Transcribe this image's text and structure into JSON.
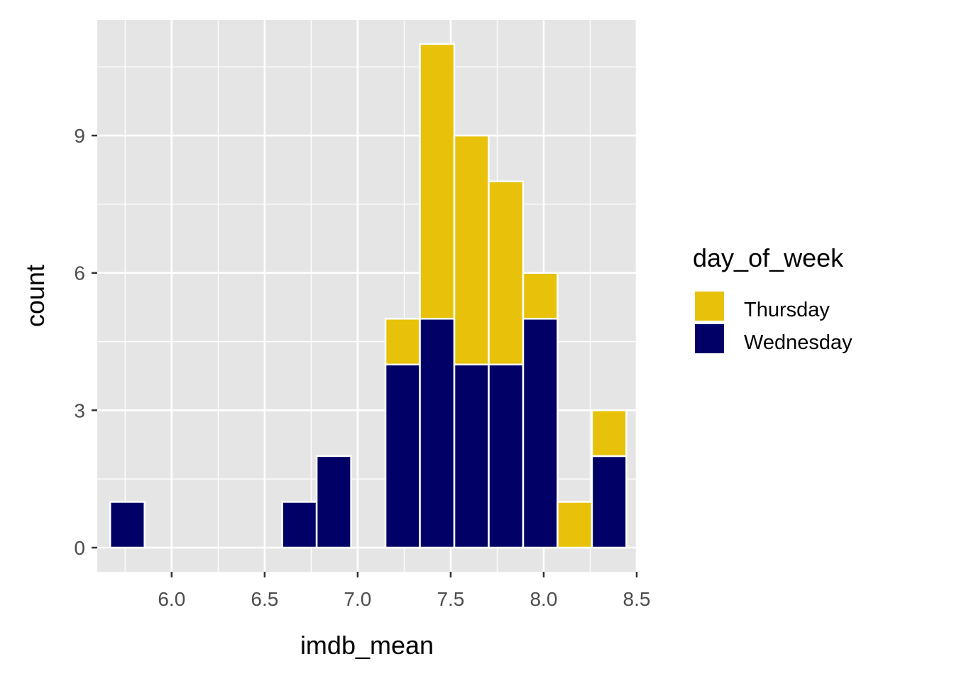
{
  "chart_data": {
    "type": "bar",
    "subtype": "stacked-histogram",
    "title": "",
    "xlabel": "imdb_mean",
    "ylabel": "count",
    "xlim": [
      5.6,
      8.5
    ],
    "ylim": [
      0,
      11
    ],
    "x_ticks": [
      "6.0",
      "6.5",
      "7.0",
      "7.5",
      "8.0",
      "8.5"
    ],
    "y_ticks": [
      "0",
      "3",
      "6",
      "9"
    ],
    "grid": true,
    "bin_width": 0.185,
    "bin_centers": [
      5.762,
      6.131,
      6.502,
      6.687,
      6.872,
      7.242,
      7.427,
      7.612,
      7.797,
      7.982,
      8.167,
      8.352
    ],
    "series": [
      {
        "name": "Wednesday",
        "color": "#000066",
        "values": [
          1,
          0,
          0,
          1,
          2,
          4,
          5,
          4,
          4,
          5,
          0,
          2
        ]
      },
      {
        "name": "Thursday",
        "color": "#E8C10A",
        "values": [
          0,
          0,
          0,
          0,
          0,
          1,
          6,
          5,
          4,
          1,
          1,
          1
        ]
      }
    ],
    "legend": {
      "title": "day_of_week",
      "position": "right",
      "items": [
        "Thursday",
        "Wednesday"
      ]
    },
    "colors": {
      "panel": "#E5E5E5",
      "grid": "#FFFFFF",
      "bar_outline": "#FFFFFF"
    }
  }
}
